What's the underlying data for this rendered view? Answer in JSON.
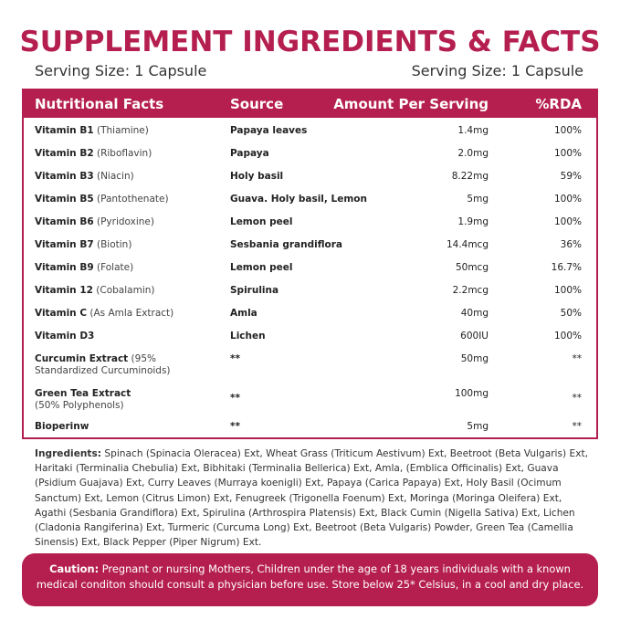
{
  "title": "SUPPLEMENT INGREDIENTS & FACTS",
  "serving_left": "Serving Size: 1 Capsule",
  "serving_right": "Serving Size: 1 Capsule",
  "colors": {
    "accent": "#b51f4f",
    "text": "#222222"
  },
  "table": {
    "headers": {
      "name": "Nutritional Facts",
      "source": "Source",
      "amount": "Amount Per Serving",
      "rda": "%RDA"
    },
    "rows": [
      {
        "name": "Vitamin B1",
        "detail": "(Thiamine)",
        "source": "Papaya leaves",
        "amount": "1.4mg",
        "rda": "100%"
      },
      {
        "name": "Vitamin B2",
        "detail": "(Riboflavin)",
        "source": "Papaya",
        "amount": "2.0mg",
        "rda": "100%"
      },
      {
        "name": "Vitamin B3",
        "detail": "(Niacin)",
        "source": "Holy basil",
        "amount": "8.22mg",
        "rda": "59%"
      },
      {
        "name": "Vitamin B5",
        "detail": "(Pantothenate)",
        "source": "Guava. Holy basil, Lemon",
        "amount": "5mg",
        "rda": "100%"
      },
      {
        "name": "Vitamin B6",
        "detail": "(Pyridoxine)",
        "source": "Lemon peel",
        "amount": "1.9mg",
        "rda": "100%"
      },
      {
        "name": "Vitamin B7",
        "detail": "(Biotin)",
        "source": "Sesbania grandiflora",
        "amount": "14.4mcg",
        "rda": "36%"
      },
      {
        "name": "Vitamin B9",
        "detail": "(Folate)",
        "source": "Lemon peel",
        "amount": "50mcg",
        "rda": "16.7%"
      },
      {
        "name": "Vitamin 12",
        "detail": "(Cobalamin)",
        "source": "Spirulina",
        "amount": "2.2mcg",
        "rda": "100%"
      },
      {
        "name": "Vitamin C",
        "detail": "(As Amla Extract)",
        "source": "Amla",
        "amount": "40mg",
        "rda": "50%"
      },
      {
        "name": "Vitamin D3",
        "detail": "",
        "source": "Lichen",
        "amount": "600IU",
        "rda": "100%"
      },
      {
        "name": "Curcumin Extract",
        "detail": "(95%",
        "detail2": "Standardized Curcuminoids)",
        "source": "**",
        "amount": "50mg",
        "rda": "**"
      },
      {
        "name": "Green Tea Extract",
        "detail": "",
        "detail2": "(50% Polyphenols)",
        "source": "**",
        "amount": "100mg",
        "rda": "**"
      },
      {
        "name": "Bioperinw",
        "detail": "",
        "source": "**",
        "amount": "5mg",
        "rda": "**"
      }
    ]
  },
  "ingredients": {
    "label": "Ingredients:",
    "text": " Spinach (Spinacia Oleracea) Ext, Wheat Grass (Triticum Aestivum) Ext, Beetroot (Beta Vulgaris) Ext, Haritaki (Terminalia Chebulia) Ext, Bibhitaki (Terminalia Bellerica) Ext, Amla, (Emblica Officinalis) Ext, Guava (Psidium Guajava) Ext, Curry Leaves (Murraya koenigli) Ext, Papaya (Carica Papaya) Ext, Holy Basil (Ocimum Sanctum) Ext, Lemon (Citrus Limon) Ext, Fenugreek (Trigonella Foenum) Ext, Moringa (Moringa Oleifera) Ext, Agathi (Sesbania Grandiflora) Ext, Spirulina (Arthrospira Platensis) Ext, Black Cumin (Nigella Sativa) Ext, Lichen (Cladonia Rangiferina) Ext, Turmeric (Curcuma Long) Ext, Beetroot (Beta Vulgaris) Powder, Green Tea (Camellia Sinensis) Ext, Black Pepper (Piper Nigrum) Ext."
  },
  "caution": {
    "label": "Caution:",
    "text": " Pregnant or nursing Mothers, Children under the age of 18 years individuals with a known medical conditon should consult a physician before use. Store below 25* Celsius, in a cool and dry place."
  }
}
